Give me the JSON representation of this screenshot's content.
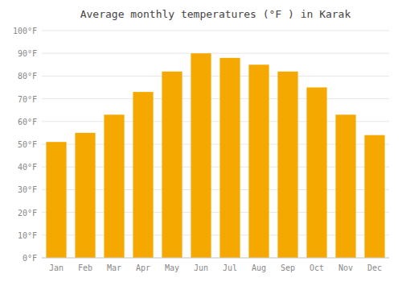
{
  "chart_data": {
    "type": "bar",
    "title": "Average monthly temperatures (°F ) in Karak",
    "categories": [
      "Jan",
      "Feb",
      "Mar",
      "Apr",
      "May",
      "Jun",
      "Jul",
      "Aug",
      "Sep",
      "Oct",
      "Nov",
      "Dec"
    ],
    "values": [
      51,
      55,
      63,
      73,
      82,
      90,
      88,
      85,
      82,
      75,
      63,
      54
    ],
    "color": "#F5A800",
    "ylim": [
      0,
      100
    ],
    "yticks": [
      {
        "value": 0,
        "label": "0°F"
      },
      {
        "value": 10,
        "label": "10°F"
      },
      {
        "value": 20,
        "label": "20°F"
      },
      {
        "value": 30,
        "label": "30°F"
      },
      {
        "value": 40,
        "label": "40°F"
      },
      {
        "value": 50,
        "label": "50°F"
      },
      {
        "value": 60,
        "label": "60°F"
      },
      {
        "value": 70,
        "label": "70°F"
      },
      {
        "value": 80,
        "label": "80°F"
      },
      {
        "value": 90,
        "label": "90°F"
      },
      {
        "value": 100,
        "label": "100°F"
      }
    ],
    "grid": true
  }
}
